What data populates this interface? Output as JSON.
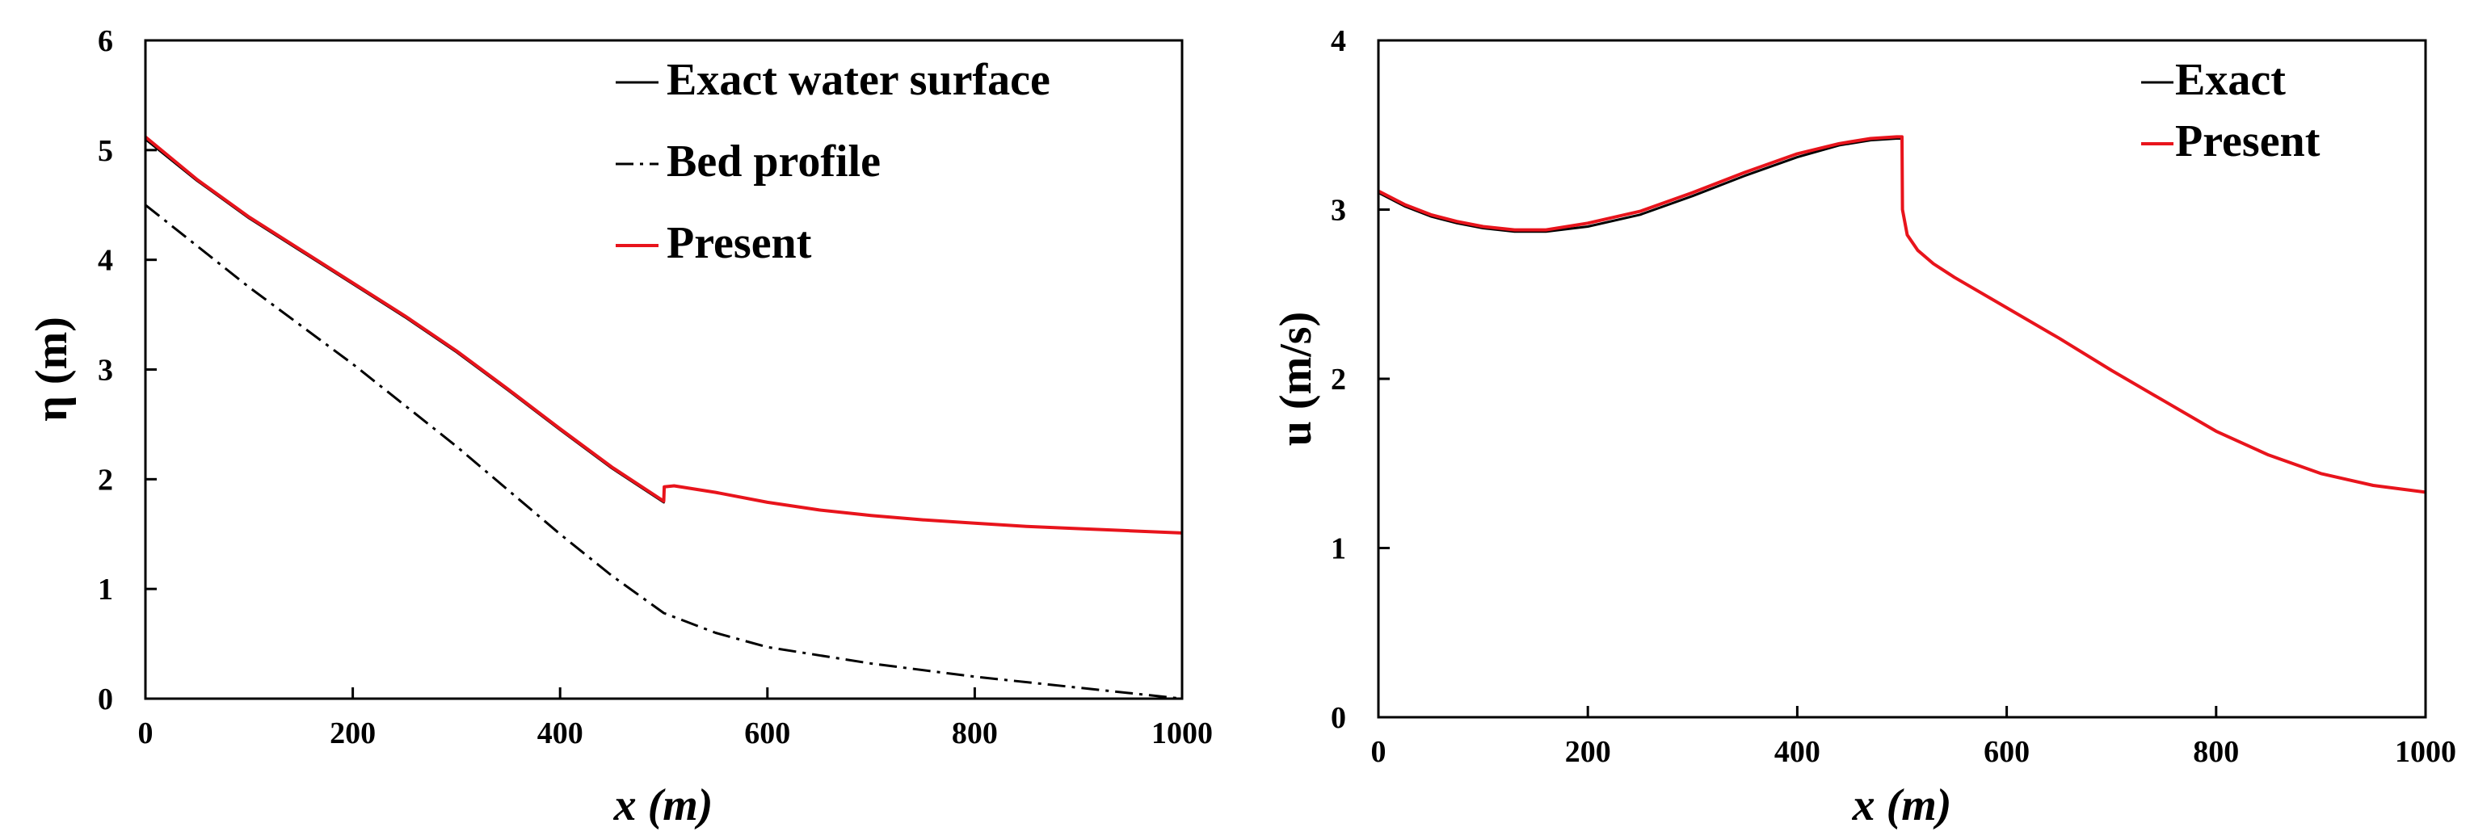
{
  "chart_data": [
    {
      "type": "line",
      "id": "left",
      "xlabel": "x (m)",
      "ylabel": "η (m)",
      "xlim": [
        0,
        1000
      ],
      "ylim": [
        0,
        6
      ],
      "xticks": [
        0,
        200,
        400,
        600,
        800,
        1000
      ],
      "yticks": [
        0,
        1,
        2,
        3,
        4,
        5,
        6
      ],
      "legend_position": "top-right",
      "series": [
        {
          "name": "Exact water surface",
          "color": "#000000",
          "style": "solid",
          "x": [
            0,
            50,
            100,
            150,
            200,
            250,
            300,
            350,
            400,
            450,
            500,
            500.5,
            510,
            550,
            600,
            650,
            700,
            750,
            800,
            850,
            900,
            950,
            1000
          ],
          "y": [
            5.1,
            4.72,
            4.38,
            4.08,
            3.78,
            3.48,
            3.16,
            2.81,
            2.45,
            2.1,
            1.79,
            1.93,
            1.94,
            1.88,
            1.79,
            1.72,
            1.67,
            1.63,
            1.6,
            1.57,
            1.55,
            1.53,
            1.51
          ]
        },
        {
          "name": "Bed profile",
          "color": "#000000",
          "style": "dashdot",
          "x": [
            0,
            100,
            200,
            300,
            400,
            450,
            500,
            550,
            600,
            700,
            800,
            900,
            1000
          ],
          "y": [
            4.5,
            3.75,
            3.05,
            2.3,
            1.5,
            1.12,
            0.78,
            0.6,
            0.47,
            0.32,
            0.2,
            0.1,
            0.0
          ]
        },
        {
          "name": "Present",
          "color": "#e8141c",
          "style": "solid",
          "x": [
            0,
            50,
            100,
            150,
            200,
            250,
            300,
            350,
            400,
            450,
            500,
            500.5,
            510,
            550,
            600,
            650,
            700,
            750,
            800,
            850,
            900,
            950,
            1000
          ],
          "y": [
            5.12,
            4.73,
            4.39,
            4.09,
            3.79,
            3.49,
            3.17,
            2.82,
            2.46,
            2.11,
            1.8,
            1.93,
            1.94,
            1.88,
            1.79,
            1.72,
            1.67,
            1.63,
            1.6,
            1.57,
            1.55,
            1.53,
            1.51
          ]
        }
      ]
    },
    {
      "type": "line",
      "id": "right",
      "xlabel": "x (m)",
      "ylabel": "u (m/s)",
      "xlim": [
        0,
        1000
      ],
      "ylim": [
        0,
        4
      ],
      "xticks": [
        0,
        200,
        400,
        600,
        800,
        1000
      ],
      "yticks": [
        0,
        1,
        2,
        3,
        4
      ],
      "legend_position": "top-right",
      "series": [
        {
          "name": "Exact",
          "color": "#000000",
          "style": "solid",
          "x": [
            0,
            25,
            50,
            75,
            100,
            130,
            160,
            200,
            250,
            300,
            350,
            400,
            440,
            470,
            495,
            500,
            500.5,
            505,
            515,
            530,
            550,
            600,
            650,
            700,
            750,
            800,
            850,
            900,
            950,
            1000
          ],
          "y": [
            3.1,
            3.02,
            2.96,
            2.92,
            2.89,
            2.87,
            2.87,
            2.9,
            2.97,
            3.08,
            3.2,
            3.31,
            3.38,
            3.41,
            3.42,
            3.42,
            3.0,
            2.85,
            2.76,
            2.68,
            2.6,
            2.42,
            2.24,
            2.05,
            1.87,
            1.69,
            1.55,
            1.44,
            1.37,
            1.33
          ]
        },
        {
          "name": "Present",
          "color": "#e8141c",
          "style": "solid",
          "x": [
            0,
            25,
            50,
            75,
            100,
            130,
            160,
            200,
            250,
            300,
            350,
            400,
            440,
            470,
            495,
            500,
            500.5,
            505,
            515,
            530,
            550,
            600,
            650,
            700,
            750,
            800,
            850,
            900,
            950,
            1000
          ],
          "y": [
            3.11,
            3.03,
            2.97,
            2.93,
            2.9,
            2.88,
            2.88,
            2.92,
            2.99,
            3.1,
            3.22,
            3.33,
            3.39,
            3.42,
            3.43,
            3.43,
            3.0,
            2.85,
            2.76,
            2.68,
            2.6,
            2.42,
            2.24,
            2.05,
            1.87,
            1.69,
            1.55,
            1.44,
            1.37,
            1.33
          ]
        }
      ]
    }
  ]
}
